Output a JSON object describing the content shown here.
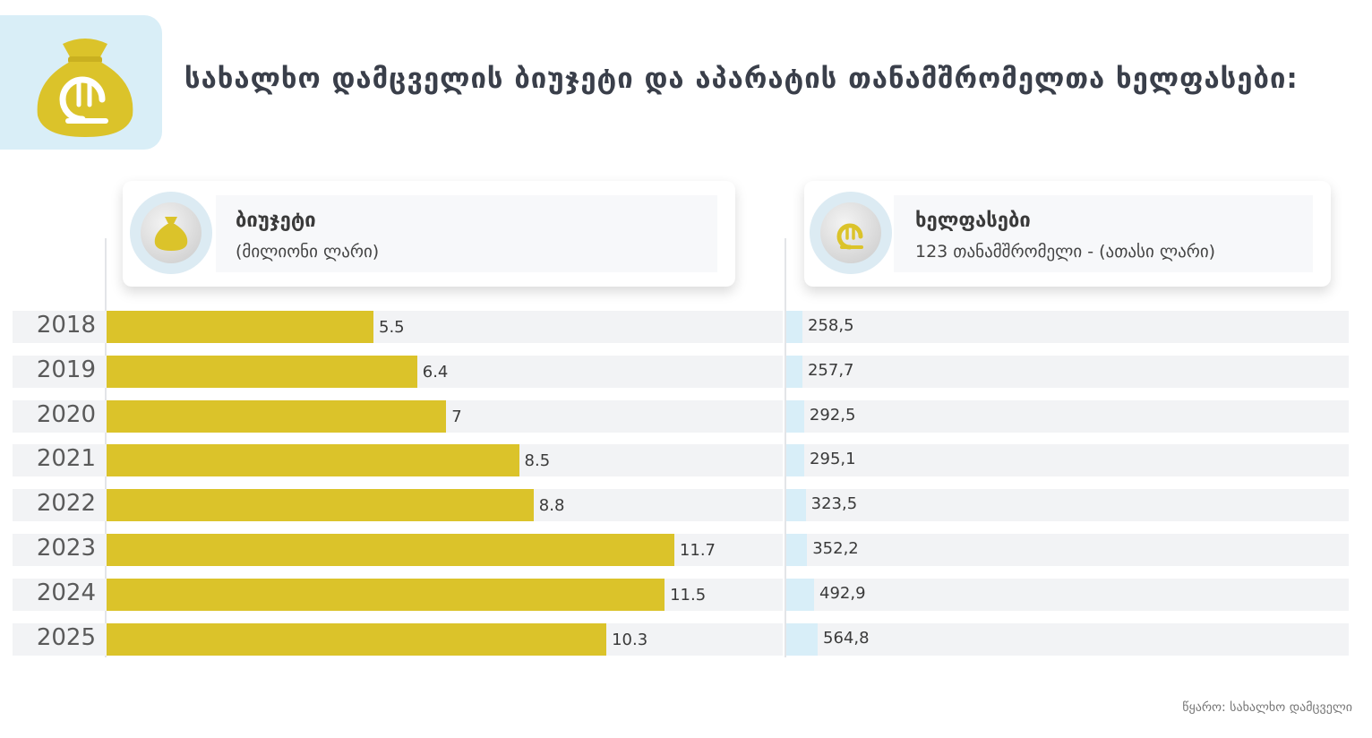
{
  "header": {
    "title": "სახალხო დამცველის ბიუჯეტი და აპარატის თანამშრომელთა ხელფასები:",
    "logo_icon": "money-bag-lari-icon"
  },
  "panels": {
    "budget": {
      "title": "ბიუჯეტი",
      "subtitle": "(მილიონი ლარი)",
      "icon": "money-bag-icon"
    },
    "salaries": {
      "title": "ხელფასები",
      "subtitle": "123 თანამშრომელი - (ათასი ლარი)",
      "icon": "lari-coin-icon"
    }
  },
  "colors": {
    "budget_bar": "#dbc32a",
    "salary_bar": "#d8eef8",
    "row_background": "#f2f3f5"
  },
  "chart_data": [
    {
      "type": "bar",
      "orientation": "horizontal",
      "title": "ბიუჯეტი",
      "subtitle": "(მილიონი ლარი)",
      "categories": [
        "2018",
        "2019",
        "2020",
        "2021",
        "2022",
        "2023",
        "2024",
        "2025"
      ],
      "values": [
        5.5,
        6.4,
        7,
        8.5,
        8.8,
        11.7,
        11.5,
        10.3
      ],
      "labels": [
        "5.5",
        "6.4",
        "7",
        "8.5",
        "8.8",
        "11.7",
        "11.5",
        "10.3"
      ],
      "xlim": [
        0,
        14.7
      ]
    },
    {
      "type": "bar",
      "orientation": "horizontal",
      "title": "ხელფასები",
      "subtitle": "123 თანამშრომელი - (ათასი ლარი)",
      "categories": [
        "2018",
        "2019",
        "2020",
        "2021",
        "2022",
        "2023",
        "2024",
        "2025"
      ],
      "values": [
        258.5,
        257.7,
        292.5,
        295.1,
        323.5,
        352.2,
        492.9,
        564.8
      ],
      "labels": [
        "258,5",
        "257,7",
        "292,5",
        "295,1",
        "323,5",
        "352,2",
        "492,9",
        "564,8"
      ]
    }
  ],
  "source": "წყარო: სახალხო დამცველი"
}
